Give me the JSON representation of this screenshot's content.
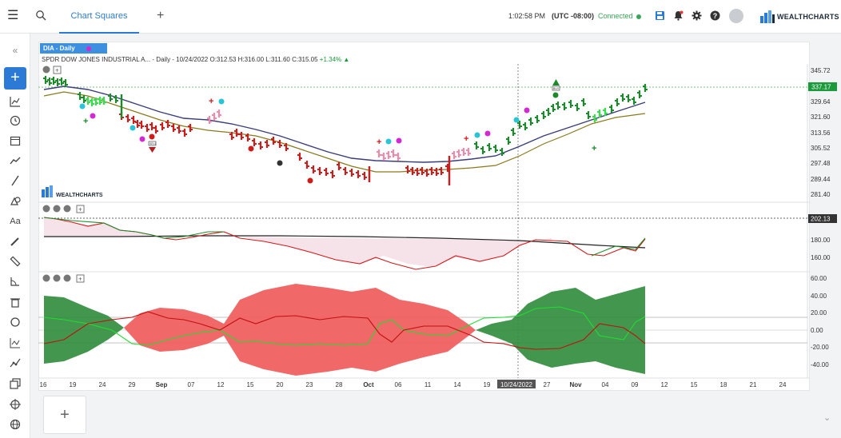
{
  "header": {
    "menu_icon": "hamburger-icon",
    "search_icon": "search-icon",
    "tab_label": "Chart Squares",
    "add_tab_icon": "plus-icon",
    "time": "1:02:58 PM",
    "timezone": "(UTC -08:00)",
    "connection_status": "Connected",
    "brand": "WEALTHCHARTS",
    "icons": [
      "save-icon",
      "alert-bell-icon",
      "gear-icon",
      "help-icon",
      "user-avatar-icon"
    ]
  },
  "sidebar": {
    "items": [
      "collapse-icon",
      "add-icon",
      "line-chart-icon",
      "clock-icon",
      "calendar-icon",
      "trend-icon",
      "line-draw-icon",
      "shapes-icon",
      "text-icon",
      "pencil-icon",
      "ruler-icon",
      "angle-icon",
      "trash-icon",
      "sync-icon",
      "indicator-icon",
      "path-icon",
      "copy-icon",
      "crosshair-icon",
      "globe-icon"
    ]
  },
  "chart": {
    "symbol_tag": "DIA - Daily",
    "title": "SPDR DOW JONES INDUSTRIAL A...",
    "interval_date": "- Daily - 10/24/2022",
    "ohlc": "O:312.53 H:316.00 L:311.60 C:315.05",
    "change": "+1.34%",
    "watermark": "WEALTHCHARTS",
    "price_axis": [
      "345.72",
      "329.64",
      "321.60",
      "313.56",
      "305.52",
      "297.48",
      "289.44",
      "281.40"
    ],
    "last_price": "337.17",
    "ind1_axis": [
      "180.00",
      "160.00"
    ],
    "ind1_last": "202.13",
    "ind2_axis": [
      "60.00",
      "40.00",
      "20.00",
      "0.00",
      "-20.00",
      "-40.00"
    ],
    "x_axis": [
      "16",
      "19",
      "24",
      "29",
      "Sep",
      "07",
      "12",
      "15",
      "20",
      "23",
      "28",
      "Oct",
      "06",
      "11",
      "14",
      "19",
      "10/24/2022",
      "27",
      "Nov",
      "04",
      "09",
      "12",
      "15",
      "18",
      "21",
      "24"
    ],
    "signal_labels": [
      "SELL",
      "BUY"
    ]
  },
  "colors": {
    "accent": "#2b7bd6",
    "up": "#1a8a2a",
    "down": "#d11a1a",
    "ma_blue": "#3a3d7a",
    "ma_olive": "#8a7a1c"
  },
  "footer": {
    "add_icon": "plus-icon",
    "collapse_icon": "chevrons-down-icon"
  }
}
